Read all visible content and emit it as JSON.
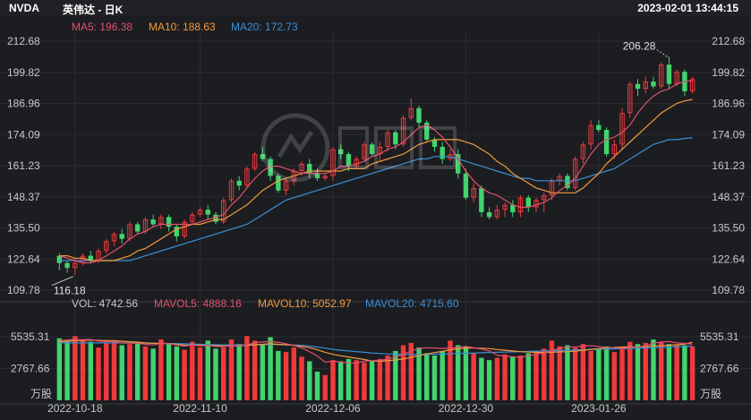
{
  "header": {
    "ticker": "NVDA",
    "title": "英伟达 - 日K",
    "datetime": "2023-02-01 13:44:15"
  },
  "price_legend": [
    {
      "label": "MA5: 196.38",
      "color": "#e0506e"
    },
    {
      "label": "MA10: 188.63",
      "color": "#f39a3c"
    },
    {
      "label": "MA20: 172.73",
      "color": "#3a8fd6"
    }
  ],
  "volume_legend": [
    {
      "label": "VOL: 4742.56",
      "color": "#c9c9c9"
    },
    {
      "label": "MAVOL5: 4888.16",
      "color": "#e0506e"
    },
    {
      "label": "MAVOL10: 5052.97",
      "color": "#f39a3c"
    },
    {
      "label": "MAVOL20: 4715.60",
      "color": "#3a8fd6"
    }
  ],
  "annotations": {
    "high": "206.28",
    "low": "116.18"
  },
  "volume_unit": "万股",
  "colors": {
    "up": "#f03a3a",
    "down": "#42d36e",
    "background": "#1c1d21"
  },
  "chart_data": {
    "type": "candlestick",
    "price_ticks": [
      "212.68",
      "199.82",
      "186.96",
      "174.09",
      "161.23",
      "148.37",
      "135.50",
      "122.64",
      "109.78"
    ],
    "price_range": [
      109.78,
      212.68
    ],
    "volume_ticks": [
      "5535.31",
      "2767.66"
    ],
    "volume_range": [
      0,
      7100
    ],
    "date_labels": [
      {
        "label": "2022-10-18",
        "index": 2
      },
      {
        "label": "2022-11-10",
        "index": 18
      },
      {
        "label": "2022-12-06",
        "index": 35
      },
      {
        "label": "2022-12-30",
        "index": 52
      },
      {
        "label": "2023-01-26",
        "index": 69
      }
    ],
    "candles": [
      [
        124,
        121,
        125,
        118
      ],
      [
        121,
        119,
        122,
        117
      ],
      [
        119,
        121,
        123,
        116.18
      ],
      [
        121,
        124,
        125,
        120
      ],
      [
        124,
        122,
        126,
        121
      ],
      [
        122,
        126,
        127,
        121
      ],
      [
        126,
        130,
        131,
        125
      ],
      [
        130,
        133,
        134,
        128
      ],
      [
        133,
        131,
        135,
        129
      ],
      [
        131,
        137,
        138,
        130
      ],
      [
        137,
        134,
        138,
        133
      ],
      [
        134,
        139,
        140,
        133
      ],
      [
        139,
        137,
        141,
        136
      ],
      [
        137,
        140,
        141,
        135
      ],
      [
        140,
        136,
        141,
        134
      ],
      [
        136,
        132,
        137,
        130
      ],
      [
        132,
        138,
        139,
        131
      ],
      [
        138,
        141,
        142,
        137
      ],
      [
        141,
        143,
        144,
        140
      ],
      [
        143,
        141,
        145,
        139
      ],
      [
        141,
        138,
        142,
        137
      ],
      [
        138,
        147,
        148,
        137
      ],
      [
        147,
        155,
        156,
        146
      ],
      [
        155,
        153,
        157,
        151
      ],
      [
        153,
        160,
        161,
        152
      ],
      [
        160,
        166,
        167,
        159
      ],
      [
        166,
        164,
        169,
        163
      ],
      [
        164,
        157,
        165,
        155
      ],
      [
        157,
        151,
        158,
        150
      ],
      [
        151,
        155,
        156,
        149
      ],
      [
        155,
        159,
        160,
        153
      ],
      [
        159,
        162,
        163,
        157
      ],
      [
        162,
        158,
        164,
        156
      ],
      [
        158,
        156,
        160,
        155
      ],
      [
        156,
        157,
        158,
        155
      ],
      [
        157,
        168,
        169,
        155
      ],
      [
        168,
        166,
        170,
        164
      ],
      [
        166,
        161,
        167,
        159
      ],
      [
        161,
        164,
        165,
        160
      ],
      [
        164,
        170,
        171,
        163
      ],
      [
        170,
        166,
        171,
        165
      ],
      [
        166,
        169,
        171,
        163
      ],
      [
        169,
        175,
        176,
        167
      ],
      [
        175,
        170,
        176,
        168
      ],
      [
        170,
        181,
        182,
        169
      ],
      [
        181,
        185,
        189,
        180
      ],
      [
        185,
        179,
        186,
        177
      ],
      [
        179,
        172,
        180,
        171
      ],
      [
        172,
        169,
        173,
        167
      ],
      [
        169,
        164,
        171,
        162
      ],
      [
        164,
        166,
        168,
        163
      ],
      [
        166,
        158,
        168,
        156
      ],
      [
        158,
        148,
        160,
        147
      ],
      [
        148,
        152,
        154,
        146
      ],
      [
        152,
        142,
        153,
        140
      ],
      [
        142,
        140,
        144,
        139
      ],
      [
        140,
        143,
        145,
        139
      ],
      [
        143,
        145,
        146,
        140
      ],
      [
        145,
        142,
        147,
        140
      ],
      [
        142,
        148,
        149,
        140
      ],
      [
        148,
        144,
        149,
        142
      ],
      [
        144,
        147,
        148,
        142
      ],
      [
        147,
        149,
        150,
        142
      ],
      [
        149,
        155,
        156,
        147
      ],
      [
        155,
        157,
        158,
        153
      ],
      [
        157,
        152,
        158,
        151
      ],
      [
        152,
        164,
        165,
        151
      ],
      [
        164,
        170,
        171,
        162
      ],
      [
        170,
        178,
        180,
        168
      ],
      [
        178,
        176,
        180,
        175
      ],
      [
        176,
        166,
        177,
        165
      ],
      [
        166,
        170,
        172,
        164
      ],
      [
        170,
        183,
        185,
        168
      ],
      [
        183,
        195,
        196,
        181
      ],
      [
        195,
        193,
        197,
        190
      ],
      [
        193,
        196,
        198,
        191
      ],
      [
        196,
        194,
        198,
        193
      ],
      [
        194,
        203,
        204,
        193
      ],
      [
        203,
        195,
        206.28,
        193
      ],
      [
        195,
        200,
        201,
        194
      ],
      [
        200,
        192,
        201,
        190
      ],
      [
        192,
        197,
        198,
        191
      ]
    ],
    "volumes": [
      5400,
      5200,
      5600,
      5300,
      5100,
      4600,
      5000,
      5200,
      4800,
      4900,
      5100,
      4700,
      4500,
      5300,
      5000,
      4700,
      4400,
      5100,
      4600,
      5200,
      4500,
      4600,
      5300,
      4900,
      5600,
      5200,
      4900,
      5500,
      4300,
      4200,
      4600,
      3800,
      3400,
      2500,
      2200,
      3500,
      3400,
      3600,
      3500,
      3300,
      3400,
      3600,
      3900,
      4300,
      4800,
      5000,
      4600,
      4100,
      3900,
      4300,
      5200,
      4800,
      4700,
      4100,
      3700,
      3500,
      3700,
      4000,
      3800,
      3900,
      4100,
      4300,
      4500,
      5200,
      4700,
      4800,
      4600,
      4900,
      4300,
      4500,
      4700,
      4200,
      4600,
      5100,
      4900,
      5000,
      5300,
      5100,
      4900,
      4800,
      4800,
      4700
    ],
    "ma5": [
      124,
      123,
      122,
      121,
      121,
      122,
      124,
      126,
      128,
      131,
      133,
      134,
      136,
      137,
      137,
      137,
      137,
      137,
      138,
      139,
      140,
      141,
      145,
      148,
      152,
      156,
      159,
      161,
      161,
      160,
      159,
      158,
      158,
      158,
      158,
      159,
      161,
      161,
      162,
      163,
      165,
      166,
      168,
      169,
      171,
      174,
      177,
      178,
      176,
      173,
      169,
      164,
      159,
      155,
      152,
      150,
      149,
      147,
      145,
      144,
      144,
      145,
      146,
      148,
      151,
      153,
      156,
      161,
      166,
      170,
      172,
      173,
      175,
      178,
      183,
      187,
      190,
      192,
      193,
      195,
      196,
      196.38
    ],
    "ma10": [
      124,
      124,
      123,
      123,
      122,
      122,
      122,
      122,
      123,
      124,
      126,
      127,
      129,
      131,
      133,
      135,
      136,
      137,
      137,
      138,
      139,
      139,
      141,
      143,
      145,
      148,
      151,
      153,
      155,
      156,
      157,
      158,
      159,
      159,
      159,
      159,
      159,
      160,
      160,
      160,
      162,
      163,
      164,
      165,
      166,
      168,
      170,
      171,
      172,
      172,
      172,
      172,
      171,
      170,
      168,
      166,
      163,
      161,
      158,
      156,
      154,
      152,
      151,
      150,
      150,
      150,
      150,
      152,
      155,
      158,
      162,
      165,
      168,
      171,
      174,
      177,
      180,
      183,
      185,
      187,
      188,
      188.63
    ],
    "ma20": [
      122,
      122,
      122,
      122,
      122,
      122,
      122,
      122,
      122,
      122,
      123,
      124,
      125,
      126,
      127,
      128,
      129,
      130,
      131,
      132,
      133,
      134,
      135,
      136,
      137,
      139,
      141,
      143,
      145,
      147,
      148,
      149,
      150,
      151,
      152,
      153,
      154,
      155,
      156,
      157,
      158,
      159,
      160,
      161,
      162,
      163,
      164,
      164,
      165,
      165,
      165,
      164,
      163,
      162,
      161,
      160,
      159,
      158,
      157,
      156,
      156,
      155,
      155,
      155,
      155,
      155,
      155,
      156,
      157,
      158,
      159,
      160,
      162,
      164,
      166,
      168,
      170,
      171,
      172,
      172,
      172.5,
      172.73
    ],
    "mavol5": [
      5200,
      5250,
      5300,
      5280,
      5300,
      5160,
      5120,
      5140,
      4980,
      4980,
      4970,
      4880,
      4820,
      4960,
      4920,
      4820,
      4720,
      4820,
      4740,
      4780,
      4700,
      4680,
      4760,
      4740,
      4820,
      5020,
      5080,
      5120,
      5060,
      4920,
      4780,
      4560,
      4240,
      3860,
      3320,
      3400,
      3320,
      3260,
      3240,
      3420,
      3440,
      3480,
      3580,
      3800,
      4000,
      4280,
      4520,
      4580,
      4560,
      4520,
      4560,
      4600,
      4700,
      4580,
      4460,
      4300,
      3940,
      3840,
      3800,
      3740,
      3880,
      4020,
      4120,
      4340,
      4520,
      4640,
      4660,
      4720,
      4760,
      4680,
      4600,
      4580,
      4520,
      4600,
      4660,
      4740,
      4980,
      5080,
      5120,
      5000,
      4960,
      4888
    ],
    "mavol10": [
      5100,
      5150,
      5200,
      5220,
      5240,
      5220,
      5200,
      5200,
      5150,
      5100,
      5060,
      5000,
      4960,
      4960,
      4940,
      4880,
      4800,
      4820,
      4800,
      4780,
      4760,
      4740,
      4760,
      4760,
      4780,
      4840,
      4880,
      4920,
      4880,
      4840,
      4780,
      4700,
      4580,
      4400,
      4180,
      4000,
      3880,
      3780,
      3660,
      3560,
      3420,
      3400,
      3440,
      3520,
      3600,
      3740,
      3900,
      4040,
      4160,
      4260,
      4400,
      4480,
      4560,
      4560,
      4540,
      4500,
      4420,
      4360,
      4300,
      4240,
      4200,
      4180,
      4160,
      4180,
      4220,
      4240,
      4280,
      4360,
      4440,
      4500,
      4580,
      4600,
      4640,
      4660,
      4660,
      4680,
      4720,
      4760,
      4800,
      4840,
      4900,
      5052
    ],
    "mavol20": [
      5000,
      5000,
      5000,
      5000,
      5000,
      5000,
      5000,
      5000,
      5000,
      5000,
      4990,
      4980,
      4970,
      4960,
      4950,
      4940,
      4920,
      4900,
      4880,
      4860,
      4840,
      4820,
      4820,
      4820,
      4830,
      4840,
      4850,
      4860,
      4850,
      4840,
      4820,
      4780,
      4720,
      4640,
      4540,
      4440,
      4360,
      4300,
      4240,
      4180,
      4120,
      4080,
      4040,
      4020,
      4000,
      3990,
      3990,
      4000,
      4020,
      4040,
      4060,
      4080,
      4100,
      4120,
      4140,
      4160,
      4180,
      4200,
      4220,
      4240,
      4260,
      4280,
      4300,
      4320,
      4340,
      4360,
      4380,
      4400,
      4420,
      4440,
      4460,
      4480,
      4500,
      4520,
      4540,
      4560,
      4580,
      4600,
      4640,
      4670,
      4700,
      4715
    ]
  }
}
